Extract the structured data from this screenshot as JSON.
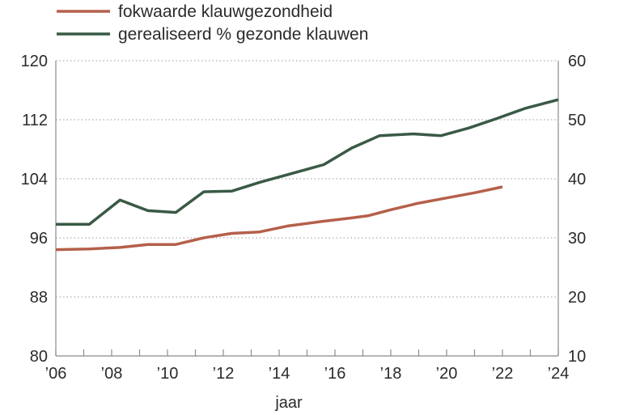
{
  "chart_data": {
    "type": "line",
    "xlabel": "jaar",
    "x_tick_labels": [
      "’06",
      "’08",
      "’10",
      "’12",
      "’14",
      "’16",
      "’18",
      "’20",
      "’22",
      "’24"
    ],
    "xlim": [
      2006,
      2024
    ],
    "ylim_left": [
      80,
      120
    ],
    "yticks_left": [
      80,
      88,
      96,
      104,
      112,
      120
    ],
    "ylim_right": [
      10,
      60
    ],
    "yticks_right": [
      10,
      20,
      30,
      40,
      50,
      60
    ],
    "grid": "horizontal dotted",
    "legend_position": "top-left",
    "series": [
      {
        "name": "fokwaarde klauwgezondheid",
        "axis": "left",
        "color": "#b5604a",
        "x": [
          2006,
          2007.2,
          2008.3,
          2009.3,
          2010.3,
          2011.3,
          2012.3,
          2013.3,
          2014.3,
          2015.5,
          2016.6,
          2017.2,
          2018,
          2019,
          2020,
          2021,
          2022
        ],
        "y": [
          94.4,
          94.5,
          94.7,
          95.1,
          95.1,
          96.0,
          96.6,
          96.8,
          97.6,
          98.2,
          98.7,
          99.0,
          99.8,
          100.7,
          101.4,
          102.1,
          102.9
        ]
      },
      {
        "name": "gerealiseerd % gezonde klauwen",
        "axis": "right",
        "color": "#395a45",
        "x": [
          2006,
          2007.2,
          2008.3,
          2009.3,
          2010.3,
          2011.3,
          2012.3,
          2013.3,
          2014.3,
          2015.6,
          2016.6,
          2017.6,
          2018.8,
          2019.8,
          2020.8,
          2021.8,
          2022.8,
          2024
        ],
        "y": [
          32.3,
          32.3,
          36.4,
          34.6,
          34.3,
          37.8,
          37.9,
          39.4,
          40.7,
          42.4,
          45.2,
          47.3,
          47.6,
          47.3,
          48.6,
          50.2,
          51.9,
          53.4
        ]
      }
    ]
  }
}
